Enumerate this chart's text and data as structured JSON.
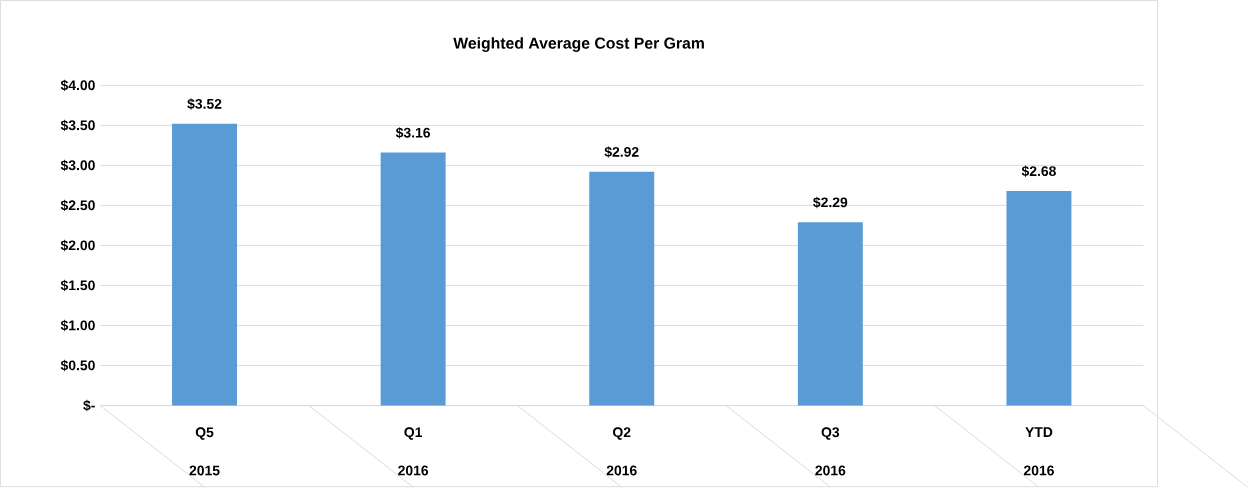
{
  "chart_data": {
    "type": "bar",
    "title": "Weighted Average Cost Per Gram",
    "categories": [
      "Q5",
      "Q1",
      "Q2",
      "Q3",
      "YTD"
    ],
    "annotations": [
      "2015",
      "2016",
      "2016",
      "2016",
      "2016"
    ],
    "values": [
      3.52,
      3.16,
      2.92,
      2.29,
      2.68
    ],
    "value_labels": [
      "$3.52",
      "$3.16",
      "$2.92",
      "$2.29",
      "$2.68"
    ],
    "color": "#5b9bd5",
    "ylim": [
      0,
      4
    ],
    "yticks": [
      {
        "value": 0,
        "label": "$-"
      },
      {
        "value": 0.5,
        "label": "$0.50"
      },
      {
        "value": 1,
        "label": "$1.00"
      },
      {
        "value": 1.5,
        "label": "$1.50"
      },
      {
        "value": 2,
        "label": "$2.00"
      },
      {
        "value": 2.5,
        "label": "$2.50"
      },
      {
        "value": 3,
        "label": "$3.00"
      },
      {
        "value": 3.5,
        "label": "$3.50"
      },
      {
        "value": 4,
        "label": "$4.00"
      }
    ],
    "grid": "y"
  }
}
